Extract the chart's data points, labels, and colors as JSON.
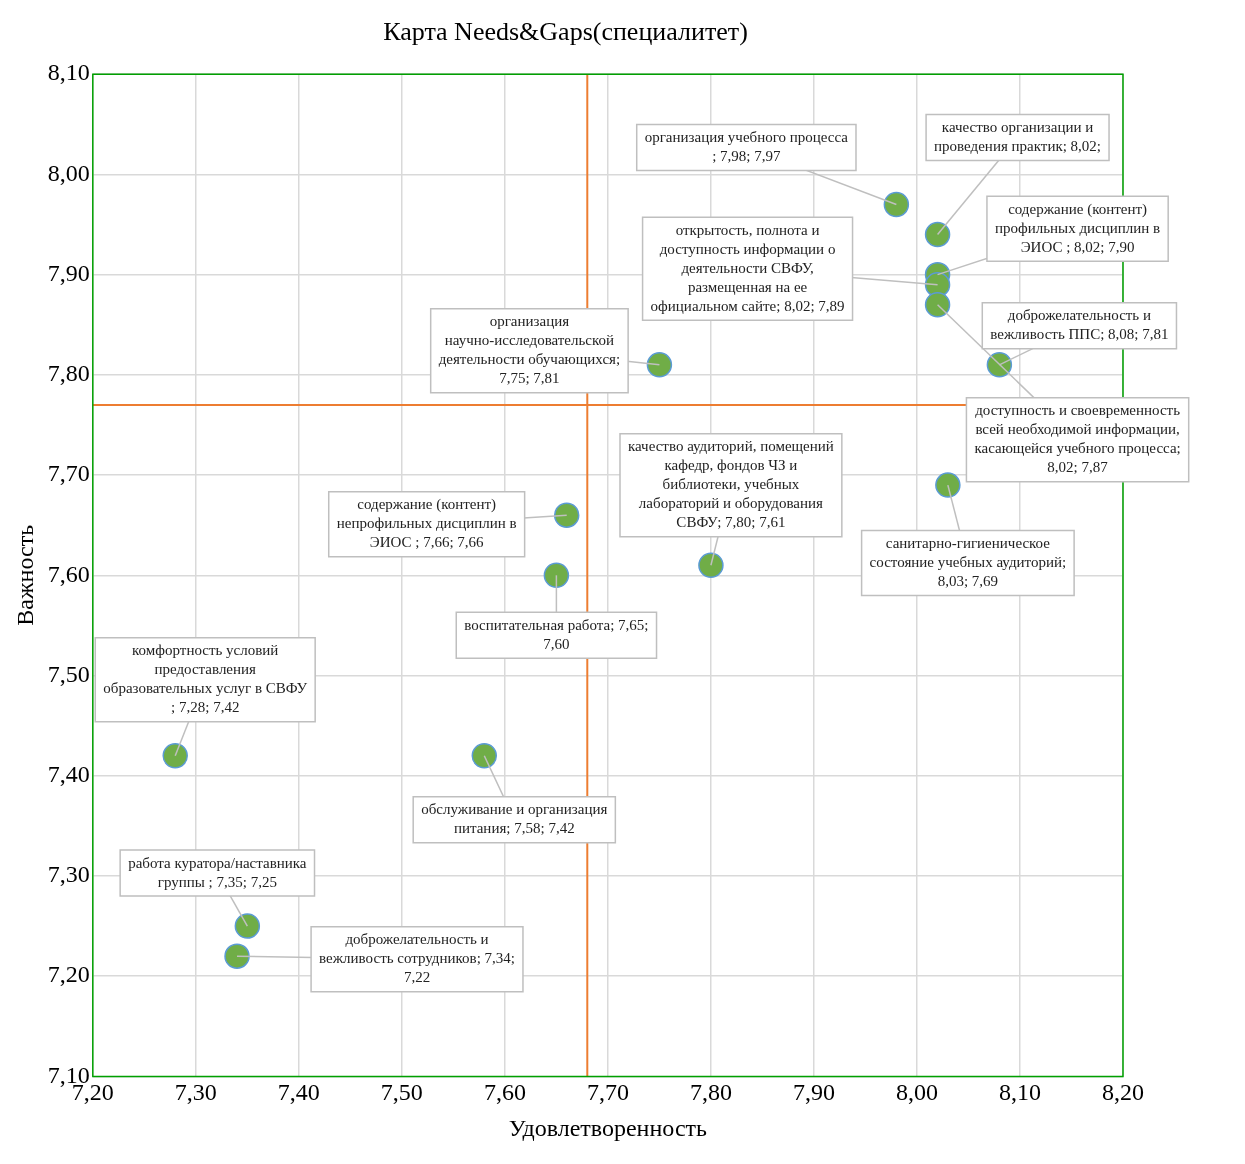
{
  "chart_data": {
    "type": "scatter",
    "title": "Карта Needs&Gaps(специалитет)",
    "xlabel": "Удовлетворенность",
    "ylabel": "Важность",
    "series": [
      {
        "color": "#70ad47",
        "x": [
          7.98,
          8.02,
          8.02,
          8.02,
          8.02,
          8.08,
          7.75,
          7.8,
          7.66,
          7.65,
          8.03,
          7.28,
          7.58,
          7.35,
          7.34
        ],
        "values": [
          7.97,
          7.94,
          7.9,
          7.89,
          7.87,
          7.81,
          7.81,
          7.61,
          7.66,
          7.6,
          7.69,
          7.42,
          7.42,
          7.25,
          7.22
        ],
        "value_labels": [
          "организация учебного процесса ; 7,98; 7,97",
          null,
          "содержание (контент) профильных дисциплин в ЭИОС ; 8,02; 7,90",
          "открытость, полнота и доступность информации о деятельности СВФУ, размещенная на ее официальном сайте; 8,02; 7,89",
          "доступность и своевременность всей необходимой информации, касающейся учебного процесса; 8,02; 7,87",
          "доброжелательность и вежливость ППС; 8,08; 7,81",
          "организация научно-исследовательской деятельности обучающихся; 7,75; 7,81",
          "качество аудиторий, помещений кафедр, фондов ЧЗ и библиотеки, учебных лабораторий и оборудования СВФУ; 7,80; 7,61",
          "содержание (контент) непрофильных дисциплин в ЭИОС ; 7,66; 7,66",
          "воспитательная работа; 7,65; 7,60",
          "санитарно-гигиеническое состояние учебных аудиторий; 8,03; 7,69",
          "комфортность условий предоставления образовательных услуг в СВФУ ; 7,28; 7,42",
          "обслуживание и организация питания; 7,58; 7,42",
          "работа куратора/наставника группы ; 7,35; 7,25",
          "доброжелательность и вежливость сотрудников; 7,34; 7,22"
        ]
      }
    ],
    "xlim": [
      7.2,
      8.2
    ],
    "xticks": [
      {
        "value": 7.2,
        "label": "7,20"
      },
      {
        "value": 7.3,
        "label": "7,30"
      },
      {
        "value": 7.4,
        "label": "7,40"
      },
      {
        "value": 7.5,
        "label": "7,50"
      },
      {
        "value": 7.6,
        "label": "7,60"
      },
      {
        "value": 7.7,
        "label": "7,70"
      },
      {
        "value": 7.8,
        "label": "7,80"
      },
      {
        "value": 7.9,
        "label": "7,90"
      },
      {
        "value": 8.0,
        "label": "8,00"
      },
      {
        "value": 8.1,
        "label": "8,10"
      },
      {
        "value": 8.2,
        "label": "8,20"
      }
    ],
    "ylim": [
      7.1,
      8.1
    ],
    "yticks": [
      {
        "value": 7.1,
        "label": "7,10"
      },
      {
        "value": 7.2,
        "label": "7,20"
      },
      {
        "value": 7.3,
        "label": "7,30"
      },
      {
        "value": 7.4,
        "label": "7,40"
      },
      {
        "value": 7.5,
        "label": "7,50"
      },
      {
        "value": 7.6,
        "label": "7,60"
      },
      {
        "value": 7.7,
        "label": "7,70"
      },
      {
        "value": 7.8,
        "label": "7,80"
      },
      {
        "value": 7.9,
        "label": "7,90"
      },
      {
        "value": 8.0,
        "label": "8,00"
      },
      {
        "value": 8.1,
        "label": "8,10"
      }
    ],
    "ref_lines": [
      {
        "axis": "x",
        "value": 7.68,
        "color": "#ed7d31"
      },
      {
        "axis": "y",
        "value": 7.77,
        "color": "#ed7d31"
      }
    ],
    "annotations": [
      {
        "text": "качество организации и проведения практик; 8,02;",
        "x": 8.02,
        "y": 7.94
      }
    ],
    "grid": true,
    "legend": false,
    "marker": "circle"
  }
}
